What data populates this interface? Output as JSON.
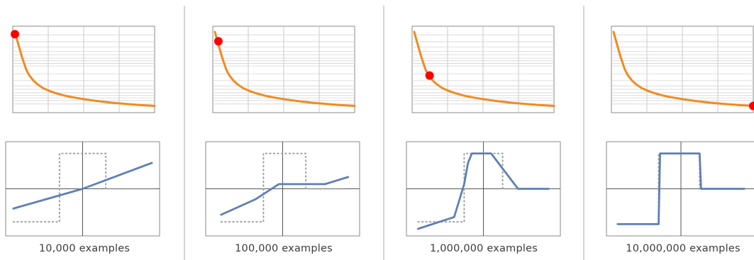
{
  "chart_data": [
    {
      "type": "line",
      "caption": "10,000 examples",
      "loss_curve": {
        "x": [
          0,
          0.02,
          0.05,
          0.08,
          0.1,
          0.13,
          0.16,
          0.2,
          0.25,
          0.3,
          0.35,
          0.4,
          0.5,
          0.6,
          0.7,
          0.8,
          0.9,
          1.0
        ],
        "y": [
          1.0,
          0.87,
          0.68,
          0.52,
          0.45,
          0.38,
          0.33,
          0.28,
          0.24,
          0.21,
          0.185,
          0.165,
          0.135,
          0.11,
          0.09,
          0.075,
          0.06,
          0.05
        ],
        "marker_x": 0.0,
        "marker_y": 0.97,
        "grid": true,
        "color": "#F28A1F",
        "marker_color": "#FF0000"
      },
      "function_plot": {
        "xlim": [
          -1,
          1
        ],
        "ylim": [
          -1,
          1
        ],
        "target": {
          "x": [
            -0.9,
            -0.3,
            -0.3,
            0.3,
            0.3,
            0.9
          ],
          "y": [
            -0.7,
            -0.7,
            0.75,
            0.75,
            0.0,
            0.0
          ]
        },
        "learned": {
          "x": [
            -0.9,
            0.0,
            0.9
          ],
          "y": [
            -0.42,
            0.0,
            0.55
          ]
        },
        "target_color": "#A0A0A0",
        "learned_color": "#5E7FB5"
      }
    },
    {
      "type": "line",
      "caption": "100,000 examples",
      "loss_curve": {
        "x": [
          0,
          0.02,
          0.05,
          0.08,
          0.1,
          0.13,
          0.16,
          0.2,
          0.25,
          0.3,
          0.35,
          0.4,
          0.5,
          0.6,
          0.7,
          0.8,
          0.9,
          1.0
        ],
        "y": [
          1.0,
          0.87,
          0.68,
          0.52,
          0.45,
          0.38,
          0.33,
          0.28,
          0.24,
          0.21,
          0.185,
          0.165,
          0.135,
          0.11,
          0.09,
          0.075,
          0.06,
          0.05
        ],
        "marker_x": 0.025,
        "marker_y": 0.88,
        "grid": true,
        "color": "#F28A1F",
        "marker_color": "#FF0000"
      },
      "function_plot": {
        "xlim": [
          -1,
          1
        ],
        "ylim": [
          -1,
          1
        ],
        "target": {
          "x": [
            -0.8,
            -0.25,
            -0.25,
            0.3,
            0.3,
            0.8
          ],
          "y": [
            -0.7,
            -0.7,
            0.75,
            0.75,
            0.0,
            0.0
          ]
        },
        "learned": {
          "x": [
            -0.8,
            -0.35,
            -0.05,
            0.55,
            0.85
          ],
          "y": [
            -0.55,
            -0.22,
            0.1,
            0.1,
            0.25
          ]
        },
        "target_color": "#A0A0A0",
        "learned_color": "#5E7FB5"
      }
    },
    {
      "type": "line",
      "caption": "1,000,000 examples",
      "loss_curve": {
        "x": [
          0,
          0.02,
          0.05,
          0.08,
          0.1,
          0.13,
          0.16,
          0.2,
          0.25,
          0.3,
          0.35,
          0.4,
          0.5,
          0.6,
          0.7,
          0.8,
          0.9,
          1.0
        ],
        "y": [
          1.0,
          0.87,
          0.68,
          0.52,
          0.45,
          0.38,
          0.33,
          0.28,
          0.24,
          0.21,
          0.185,
          0.165,
          0.135,
          0.11,
          0.09,
          0.075,
          0.06,
          0.05
        ],
        "marker_x": 0.11,
        "marker_y": 0.44,
        "grid": true,
        "color": "#F28A1F",
        "marker_color": "#FF0000"
      },
      "function_plot": {
        "xlim": [
          -1,
          1
        ],
        "ylim": [
          -1,
          1
        ],
        "target": {
          "x": [
            -0.85,
            -0.25,
            -0.25,
            0.25,
            0.25,
            0.85
          ],
          "y": [
            -0.7,
            -0.7,
            0.75,
            0.75,
            0.0,
            0.0
          ]
        },
        "learned": {
          "x": [
            -0.85,
            -0.38,
            -0.25,
            -0.2,
            -0.15,
            0.1,
            0.45,
            0.85
          ],
          "y": [
            -0.85,
            -0.6,
            0.1,
            0.55,
            0.75,
            0.75,
            0.0,
            0.0
          ]
        },
        "target_color": "#A0A0A0",
        "learned_color": "#5E7FB5"
      }
    },
    {
      "type": "line",
      "caption": "10,000,000 examples",
      "loss_curve": {
        "x": [
          0,
          0.02,
          0.05,
          0.08,
          0.1,
          0.13,
          0.16,
          0.2,
          0.25,
          0.3,
          0.35,
          0.4,
          0.5,
          0.6,
          0.7,
          0.8,
          0.9,
          1.0
        ],
        "y": [
          1.0,
          0.87,
          0.68,
          0.52,
          0.45,
          0.38,
          0.33,
          0.28,
          0.24,
          0.21,
          0.185,
          0.165,
          0.135,
          0.11,
          0.09,
          0.075,
          0.06,
          0.05
        ],
        "marker_x": 1.0,
        "marker_y": 0.05,
        "grid": true,
        "color": "#F28A1F",
        "marker_color": "#FF0000"
      },
      "function_plot": {
        "xlim": [
          -1,
          1
        ],
        "ylim": [
          -1,
          1
        ],
        "target": {
          "x": [
            -0.85,
            -0.3,
            -0.3,
            0.25,
            0.25,
            0.85
          ],
          "y": [
            -0.75,
            -0.75,
            0.75,
            0.75,
            0.0,
            0.0
          ]
        },
        "learned": {
          "x": [
            -0.85,
            -0.3,
            -0.28,
            0.25,
            0.27,
            0.85
          ],
          "y": [
            -0.75,
            -0.75,
            0.75,
            0.75,
            0.0,
            0.0
          ]
        },
        "target_color": "#A0A0A0",
        "learned_color": "#5E7FB5"
      }
    }
  ]
}
